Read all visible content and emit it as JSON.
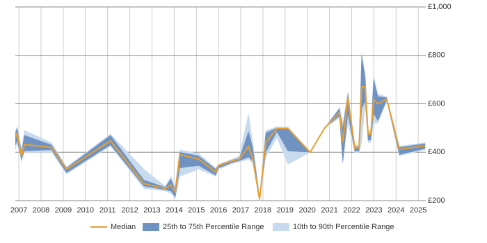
{
  "chart_data": {
    "type": "line",
    "x": [
      2006.85,
      2006.92,
      2007.12,
      2007.25,
      2008.47,
      2009.15,
      2011.13,
      2012.64,
      2013.6,
      2013.85,
      2014.05,
      2014.25,
      2015.1,
      2015.87,
      2016,
      2016.7,
      2016.94,
      2017.35,
      2017.54,
      2017.85,
      2018.13,
      2018.63,
      2019.13,
      2020.13,
      2020.79,
      2021.45,
      2021.6,
      2021.83,
      2022.14,
      2022.33,
      2022.45,
      2022.61,
      2022.74,
      2022.86,
      2022.99,
      2023.18,
      2023.58,
      2024.15,
      2025.31
    ],
    "series": [
      {
        "name": "Median",
        "color": "#e8a030",
        "values": [
          460,
          480,
          383,
          432,
          420,
          330,
          447,
          270,
          250,
          265,
          235,
          390,
          372,
          318,
          346,
          366,
          372,
          424,
          375,
          205,
          441,
          498,
          498,
          400,
          501,
          564,
          441,
          627,
          418,
          418,
          670,
          670,
          475,
          475,
          618,
          600,
          620,
          412,
          426
        ]
      },
      {
        "name": "25th to 75th Percentile Range",
        "color": "#6f92c2",
        "low": [
          430,
          450,
          370,
          405,
          410,
          315,
          430,
          260,
          245,
          240,
          215,
          335,
          345,
          305,
          335,
          360,
          365,
          380,
          365,
          205,
          400,
          485,
          405,
          400,
          501,
          550,
          360,
          560,
          405,
          405,
          580,
          610,
          450,
          450,
          560,
          530,
          615,
          390,
          415
        ],
        "high": [
          480,
          500,
          400,
          470,
          430,
          335,
          470,
          285,
          255,
          290,
          245,
          400,
          385,
          330,
          348,
          370,
          375,
          485,
          420,
          210,
          480,
          500,
          500,
          400,
          501,
          580,
          500,
          640,
          420,
          425,
          800,
          710,
          480,
          480,
          700,
          630,
          625,
          420,
          435
        ]
      },
      {
        "name": "10th to 90th Percentile Range",
        "color": "#c8daee",
        "low": [
          410,
          440,
          360,
          400,
          400,
          310,
          425,
          250,
          240,
          230,
          210,
          300,
          330,
          300,
          330,
          355,
          360,
          370,
          355,
          200,
          380,
          460,
          350,
          400,
          501,
          540,
          355,
          520,
          400,
          395,
          440,
          600,
          440,
          440,
          520,
          520,
          610,
          385,
          410
        ],
        "high": [
          490,
          505,
          410,
          490,
          440,
          340,
          475,
          330,
          260,
          300,
          260,
          410,
          395,
          335,
          350,
          375,
          385,
          560,
          440,
          220,
          490,
          505,
          505,
          400,
          501,
          585,
          520,
          650,
          430,
          430,
          810,
          720,
          490,
          490,
          720,
          640,
          630,
          425,
          440
        ]
      }
    ],
    "xlim": [
      2006.84,
      2025.34
    ],
    "xticks": [
      2007,
      2008,
      2009,
      2010,
      2011,
      2012,
      2013,
      2014,
      2015,
      2016,
      2017,
      2018,
      2019,
      2020,
      2021,
      2022,
      2023,
      2024,
      2025
    ],
    "ylim": [
      200,
      1000
    ],
    "yticks": [
      {
        "value": 200,
        "label": "£200"
      },
      {
        "value": 400,
        "label": "£400"
      },
      {
        "value": 600,
        "label": "£600"
      },
      {
        "value": 800,
        "label": "£800"
      },
      {
        "value": 1000,
        "label": "£1,000"
      }
    ],
    "grid": true
  }
}
